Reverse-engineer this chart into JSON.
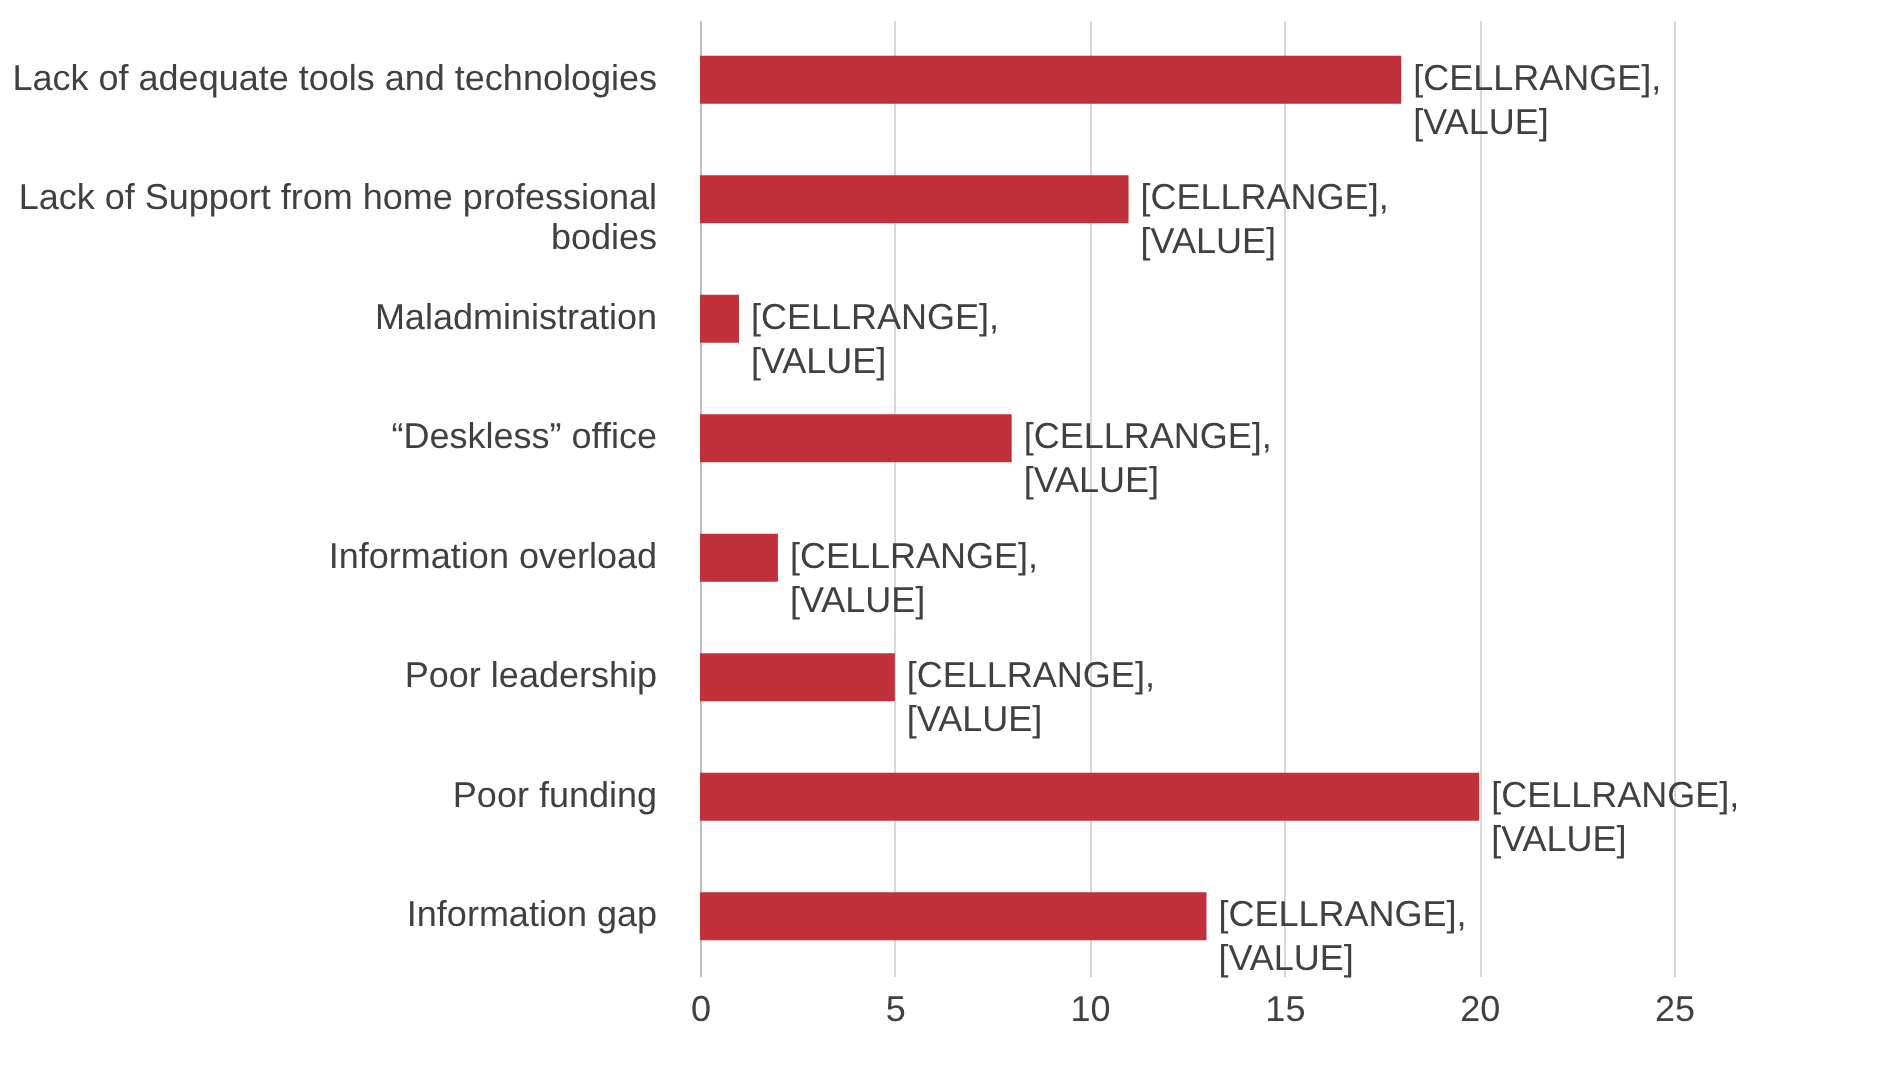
{
  "chart_data": {
    "type": "bar",
    "orientation": "horizontal",
    "categories": [
      "Lack of adequate tools and technologies",
      "Lack of Support from home professional bodies",
      "Maladministration",
      "“Deskless” office",
      "Information overload",
      "Poor leadership",
      "Poor funding",
      "Information gap"
    ],
    "values": [
      18,
      11,
      1,
      8,
      2,
      5,
      20,
      13
    ],
    "color": "#c0313c",
    "value_labels": [
      "[CELLRANGE], [VALUE]",
      "[CELLRANGE], [VALUE]",
      "[CELLRANGE], [VALUE]",
      "[CELLRANGE], [VALUE]",
      "[CELLRANGE], [VALUE]",
      "[CELLRANGE], [VALUE]",
      "[CELLRANGE], [VALUE]",
      "[CELLRANGE], [VALUE]"
    ],
    "xlim": [
      0,
      25
    ],
    "xticks": [
      0,
      5,
      10,
      15,
      20,
      25
    ],
    "grid": "x"
  }
}
